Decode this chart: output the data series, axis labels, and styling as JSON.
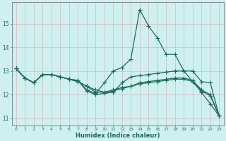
{
  "bg_color": "#cff0f0",
  "grid_color": "#b8d0d0",
  "line_color": "#1a6b5a",
  "marker": "+",
  "markersize": 4.0,
  "linewidth": 0.9,
  "xlabel": "Humidex (Indice chaleur)",
  "xlim": [
    -0.5,
    23.5
  ],
  "ylim": [
    10.7,
    15.9
  ],
  "yticks": [
    11,
    12,
    13,
    14,
    15
  ],
  "xticks": [
    0,
    1,
    2,
    3,
    4,
    5,
    6,
    7,
    8,
    9,
    10,
    11,
    12,
    13,
    14,
    15,
    16,
    17,
    18,
    19,
    20,
    21,
    22,
    23
  ],
  "series": [
    [
      13.1,
      12.7,
      12.5,
      12.85,
      12.85,
      12.75,
      12.65,
      12.6,
      12.2,
      12.05,
      12.5,
      13.0,
      13.15,
      13.5,
      15.6,
      14.9,
      14.4,
      13.7,
      13.7,
      13.0,
      12.55,
      12.1,
      11.6,
      11.1
    ],
    [
      13.1,
      12.7,
      12.5,
      12.85,
      12.85,
      12.75,
      12.65,
      12.6,
      12.15,
      12.0,
      12.05,
      12.1,
      12.5,
      12.75,
      12.8,
      12.85,
      12.9,
      12.95,
      13.0,
      13.0,
      13.0,
      12.55,
      12.5,
      11.1
    ],
    [
      13.1,
      12.7,
      12.5,
      12.85,
      12.85,
      12.75,
      12.65,
      12.55,
      12.35,
      12.1,
      12.1,
      12.15,
      12.25,
      12.35,
      12.45,
      12.5,
      12.55,
      12.6,
      12.65,
      12.65,
      12.55,
      12.15,
      11.95,
      11.1
    ],
    [
      13.1,
      12.7,
      12.5,
      12.85,
      12.85,
      12.75,
      12.65,
      12.55,
      12.35,
      12.2,
      12.1,
      12.2,
      12.3,
      12.35,
      12.5,
      12.55,
      12.6,
      12.65,
      12.7,
      12.7,
      12.6,
      12.2,
      12.0,
      11.1
    ]
  ]
}
